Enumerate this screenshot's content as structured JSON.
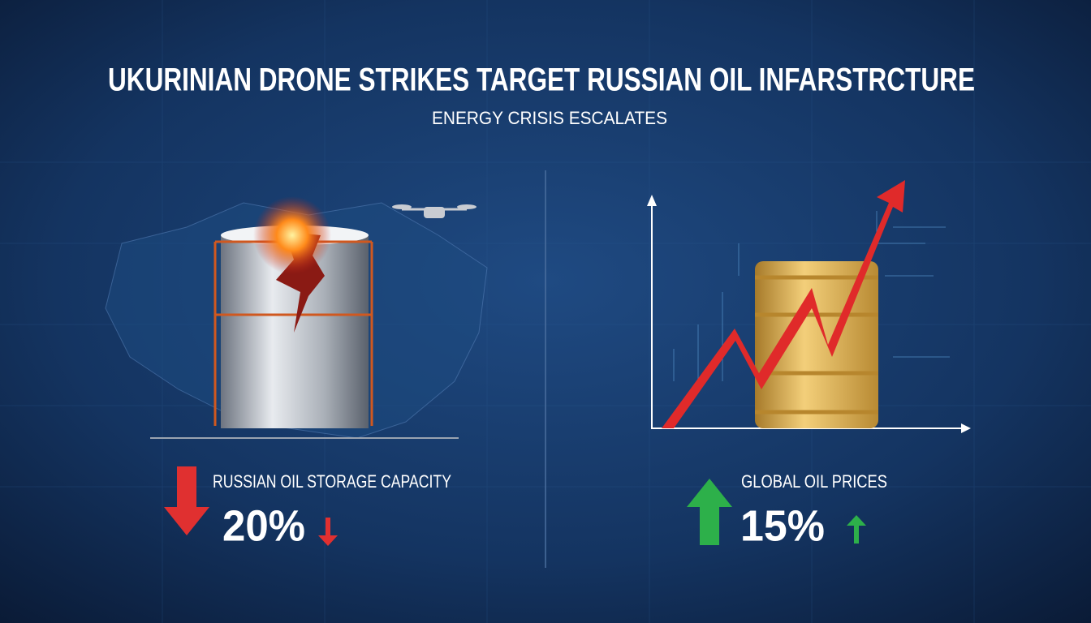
{
  "header": {
    "title": "UKURINIAN DRONE STRIKES TARGET RUSSIAN OIL INFARSTRCTURE",
    "subtitle": "ENERGY CRISIS ESCALATES"
  },
  "panels": [
    {
      "label": "RUSSIAN OIL STORAGE CAPACITY",
      "value": "20%"
    },
    {
      "label": "GLOBAL OIL PRICES",
      "value": "15%"
    }
  ]
}
